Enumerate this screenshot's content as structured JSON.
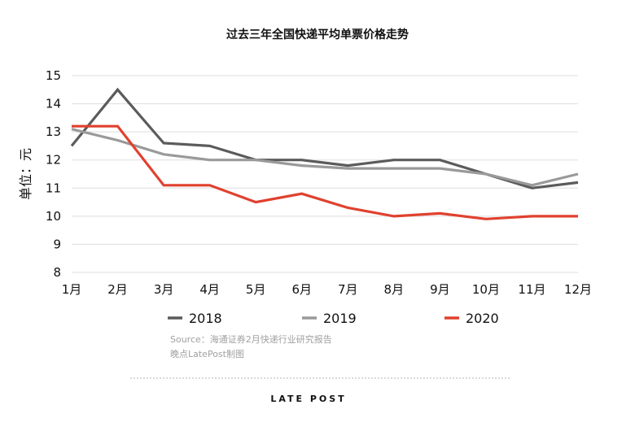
{
  "chart_data": {
    "type": "line",
    "title": "过去三年全国快递平均单票价格走势",
    "ylabel": "单位：元",
    "xlabel": "",
    "categories": [
      "1月",
      "2月",
      "3月",
      "4月",
      "5月",
      "6月",
      "7月",
      "8月",
      "9月",
      "10月",
      "11月",
      "12月"
    ],
    "ylim": [
      8,
      15
    ],
    "yticks": [
      "8",
      "9",
      "10",
      "11",
      "12",
      "13",
      "14",
      "15"
    ],
    "grid": true,
    "legend_position": "bottom",
    "series": [
      {
        "name": "2018",
        "color": "#5b5b5b",
        "values": [
          12.5,
          14.5,
          12.6,
          12.5,
          12.0,
          12.0,
          11.8,
          12.0,
          12.0,
          11.5,
          11.0,
          11.2
        ]
      },
      {
        "name": "2019",
        "color": "#9a9a9a",
        "values": [
          13.1,
          12.7,
          12.2,
          12.0,
          12.0,
          11.8,
          11.7,
          11.7,
          11.7,
          11.5,
          11.1,
          11.5
        ]
      },
      {
        "name": "2020",
        "color": "#e0412f",
        "values": [
          13.2,
          13.2,
          11.1,
          11.1,
          10.5,
          10.8,
          10.3,
          10.0,
          10.1,
          9.9,
          10.0,
          10.0
        ]
      }
    ]
  },
  "source": {
    "line1": "Source：海通证券2月快递行业研究报告",
    "line2": "晚点LatePost制图"
  },
  "brand": "LATE POST"
}
